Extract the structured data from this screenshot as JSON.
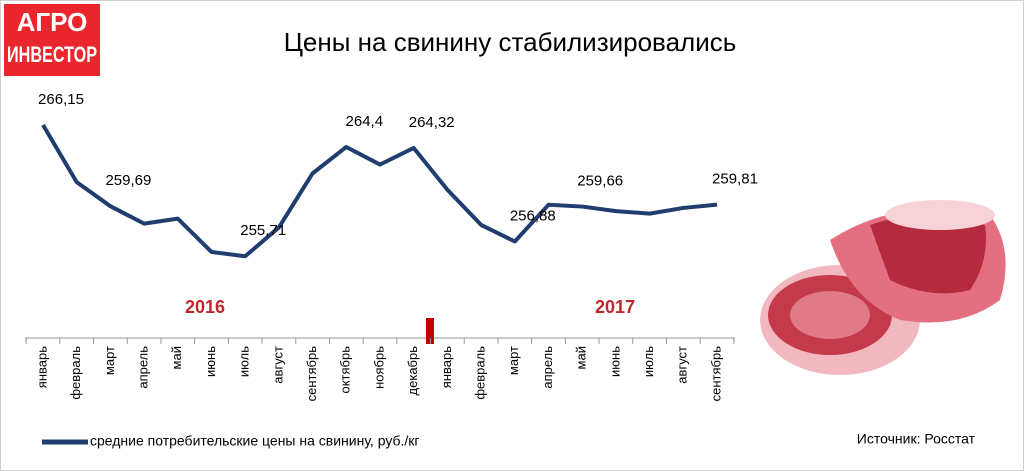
{
  "logo": {
    "line1": "АГРО",
    "line2": "ИНВЕСТОР"
  },
  "chart_data": {
    "type": "line",
    "title": "Цены на свинину стабилизировались",
    "categories": [
      "январь",
      "февраль",
      "март",
      "апрель",
      "май",
      "июнь",
      "июль",
      "август",
      "сентябрь",
      "октябрь",
      "ноябрь",
      "декабрь",
      "январь",
      "февраль",
      "март",
      "апрель",
      "май",
      "июнь",
      "июль",
      "август",
      "сентябрь"
    ],
    "years": [
      "2016",
      "2017"
    ],
    "series": [
      {
        "name": "средние потребительские цены на свинину, руб./кг",
        "color": "#1f3d6e",
        "values": [
          266.15,
          261.6,
          259.69,
          258.3,
          258.7,
          256.05,
          255.71,
          258.0,
          262.3,
          264.4,
          263.0,
          264.32,
          261.0,
          258.2,
          256.88,
          259.8,
          259.66,
          259.3,
          259.1,
          259.55,
          259.81
        ],
        "value_labels": [
          "266,15",
          null,
          "259,69",
          null,
          null,
          null,
          "255,71",
          null,
          null,
          "264,4",
          null,
          "264,32",
          null,
          null,
          "256,88",
          null,
          "259,66",
          null,
          null,
          null,
          "259,81"
        ]
      }
    ],
    "ylim": [
      253,
      268
    ],
    "source": "Источник: Росстат"
  }
}
